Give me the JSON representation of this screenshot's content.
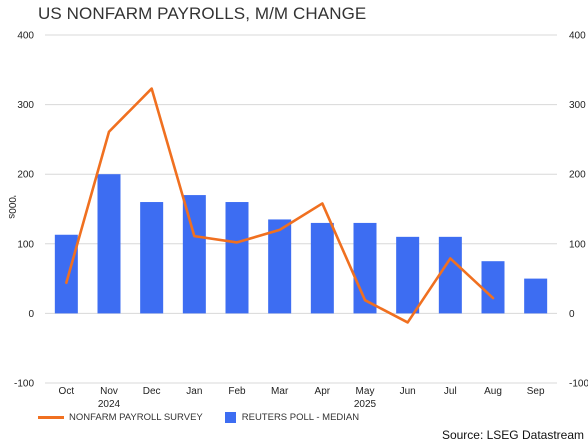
{
  "chart_data": {
    "type": "bar",
    "title": "US NONFARM PAYROLLS, M/M CHANGE",
    "ylabel": "'000s",
    "ylim": [
      -100,
      400
    ],
    "yticks": [
      -100,
      0,
      100,
      200,
      300,
      400
    ],
    "grid": true,
    "legend_placement": "bottom-left",
    "categories": [
      "Oct",
      "Nov",
      "Dec",
      "Jan",
      "Feb",
      "Mar",
      "Apr",
      "May",
      "Jun",
      "Jul",
      "Aug",
      "Sep"
    ],
    "year_labels": [
      {
        "category": "Nov",
        "label": "2024"
      },
      {
        "category": "May",
        "label": "2025"
      }
    ],
    "series": [
      {
        "name": "NONFARM PAYROLL SURVEY",
        "type": "line",
        "color": "#f07020",
        "values": [
          44,
          261,
          323,
          111,
          102,
          120,
          158,
          19,
          -13,
          79,
          22,
          null
        ]
      },
      {
        "name": "REUTERS POLL - MEDIAN",
        "type": "bar",
        "color": "#3d6df2",
        "values": [
          113,
          200,
          160,
          170,
          160,
          135,
          130,
          130,
          110,
          110,
          75,
          50
        ]
      }
    ],
    "source": "Source: LSEG Datastream"
  }
}
